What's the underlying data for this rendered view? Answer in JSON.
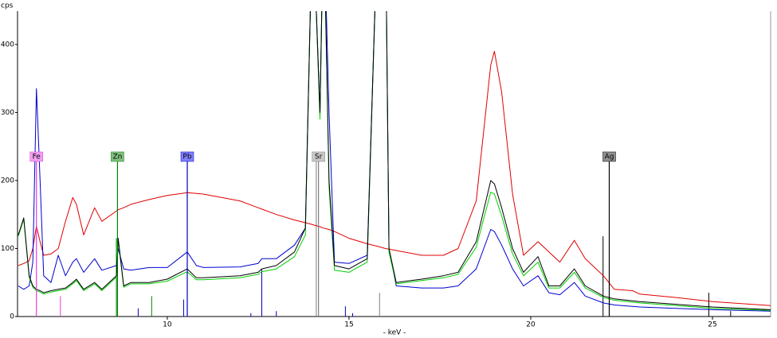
{
  "chart_data": {
    "type": "line",
    "y_unit": "cps",
    "xlabel": "- keV -",
    "xlim": [
      5.88,
      26.6
    ],
    "ylim": [
      0,
      449
    ],
    "xticks": [
      10,
      15,
      20,
      25
    ],
    "yticks": [
      0,
      100,
      200,
      300,
      400
    ],
    "x": [
      5.9,
      6.05,
      6.2,
      6.3,
      6.4,
      6.5,
      6.6,
      6.8,
      7.0,
      7.2,
      7.4,
      7.5,
      7.7,
      8.0,
      8.2,
      8.6,
      8.65,
      8.8,
      9.0,
      9.5,
      10.0,
      10.55,
      10.8,
      11.0,
      12.0,
      12.5,
      12.6,
      13.0,
      13.5,
      13.8,
      14.0,
      14.2,
      14.3,
      14.45,
      14.6,
      15.0,
      15.5,
      15.8,
      16.0,
      16.1,
      16.3,
      17.0,
      17.6,
      18.0,
      18.5,
      18.9,
      19.0,
      19.2,
      19.5,
      19.8,
      20.2,
      20.5,
      20.8,
      21.2,
      21.5,
      22.0,
      22.3,
      22.8,
      23.0,
      24.0,
      25.0,
      26.6
    ],
    "series": [
      {
        "color": "#e00000",
        "values": [
          75,
          78,
          82,
          100,
          133,
          110,
          90,
          92,
          100,
          140,
          175,
          165,
          120,
          160,
          140,
          155,
          157,
          160,
          165,
          172,
          178,
          182,
          181,
          180,
          170,
          160,
          158,
          150,
          142,
          138,
          135,
          132,
          130,
          128,
          125,
          115,
          107,
          103,
          100,
          99,
          97,
          90,
          90,
          100,
          170,
          370,
          390,
          330,
          180,
          90,
          110,
          95,
          80,
          112,
          85,
          60,
          40,
          38,
          33,
          28,
          22,
          16
        ]
      },
      {
        "color": "#0000d0",
        "values": [
          45,
          40,
          45,
          80,
          335,
          200,
          60,
          50,
          90,
          60,
          80,
          85,
          65,
          85,
          68,
          75,
          100,
          70,
          68,
          72,
          72,
          95,
          75,
          72,
          73,
          78,
          85,
          85,
          105,
          130,
          600,
          300,
          600,
          300,
          80,
          78,
          90,
          600,
          600,
          100,
          45,
          42,
          42,
          45,
          70,
          128,
          125,
          105,
          70,
          45,
          60,
          35,
          32,
          50,
          30,
          20,
          17,
          15,
          14,
          12,
          10,
          8
        ]
      },
      {
        "color": "#00d000",
        "values": [
          118,
          143,
          58,
          43,
          38,
          36,
          33,
          36,
          38,
          40,
          48,
          53,
          38,
          48,
          38,
          58,
          112,
          43,
          48,
          48,
          52,
          66,
          54,
          54,
          57,
          62,
          66,
          70,
          88,
          120,
          600,
          290,
          600,
          190,
          68,
          65,
          80,
          600,
          600,
          95,
          48,
          53,
          57,
          62,
          102,
          183,
          180,
          148,
          92,
          60,
          80,
          42,
          42,
          65,
          42,
          28,
          24,
          21,
          20,
          16,
          12,
          9
        ]
      },
      {
        "color": "#000000",
        "values": [
          120,
          145,
          60,
          45,
          40,
          38,
          35,
          38,
          40,
          42,
          50,
          55,
          40,
          50,
          40,
          60,
          115,
          45,
          50,
          50,
          55,
          70,
          57,
          57,
          60,
          65,
          70,
          75,
          95,
          130,
          600,
          300,
          600,
          200,
          75,
          70,
          85,
          600,
          600,
          100,
          50,
          55,
          60,
          65,
          110,
          200,
          195,
          160,
          100,
          65,
          88,
          45,
          45,
          70,
          45,
          30,
          26,
          23,
          22,
          18,
          14,
          10
        ]
      }
    ],
    "markers": [
      {
        "label": "Fe",
        "value": 6.4,
        "color": "#e040e0",
        "box": "#f0a0f0"
      },
      {
        "label": "Zn",
        "value": 8.63,
        "color": "#008000",
        "box": "#80c080"
      },
      {
        "label": "Pb",
        "value": 10.55,
        "color": "#0000c0",
        "box": "#8080ff"
      },
      {
        "label": "Sr",
        "value": 14.16,
        "color": "#808080",
        "box": "#c8c8c8"
      },
      {
        "label": "Ag",
        "value": 22.16,
        "color": "#000000",
        "box": "#909090"
      }
    ],
    "sticks": [
      {
        "x": 7.06,
        "height": 30,
        "color": "#e040e0"
      },
      {
        "x": 8.6,
        "height": 115,
        "color": "#008000"
      },
      {
        "x": 9.57,
        "height": 30,
        "color": "#008000"
      },
      {
        "x": 9.2,
        "height": 12,
        "color": "#0000c0"
      },
      {
        "x": 10.45,
        "height": 25,
        "color": "#0000c0"
      },
      {
        "x": 12.3,
        "height": 5,
        "color": "#0000c0"
      },
      {
        "x": 12.6,
        "height": 70,
        "color": "#0000c0"
      },
      {
        "x": 13.0,
        "height": 8,
        "color": "#0000c0"
      },
      {
        "x": 14.1,
        "height": 235,
        "color": "#808080"
      },
      {
        "x": 14.9,
        "height": 15,
        "color": "#0000c0"
      },
      {
        "x": 15.1,
        "height": 5,
        "color": "#0000c0"
      },
      {
        "x": 15.84,
        "height": 35,
        "color": "#808080"
      },
      {
        "x": 21.99,
        "height": 118,
        "color": "#000000"
      },
      {
        "x": 24.9,
        "height": 35,
        "color": "#000000"
      },
      {
        "x": 25.5,
        "height": 8,
        "color": "#000000"
      }
    ]
  }
}
